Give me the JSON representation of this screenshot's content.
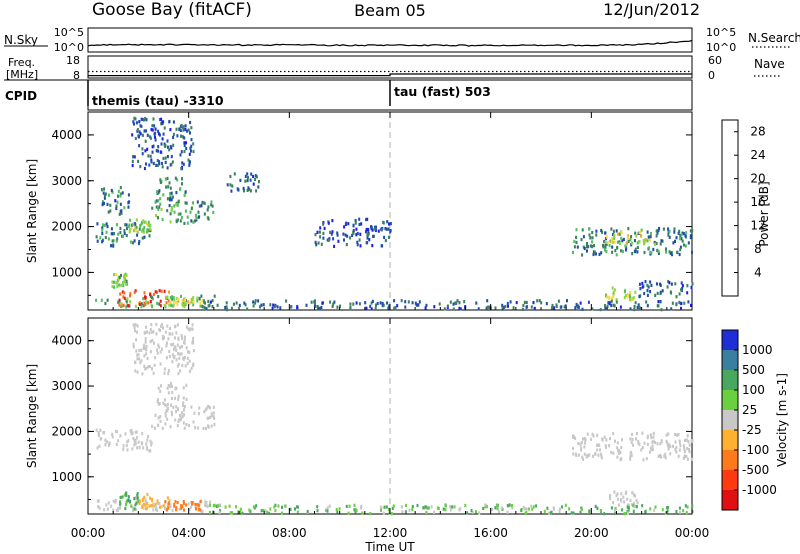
{
  "header": {
    "station": "Goose Bay (fitACF)",
    "beam": "Beam 05",
    "date": "12/Jun/2012"
  },
  "chart_data": [
    {
      "type": "line",
      "name": "noise",
      "left_label": "N.Sky",
      "right_label": "N.Search",
      "left_ticks": [
        "10^5",
        "10^0"
      ],
      "right_ticks": [
        "10^5",
        "10^0"
      ],
      "x": [
        0,
        1,
        2,
        3,
        4,
        5,
        6,
        7,
        8,
        9,
        10,
        11,
        12,
        13,
        14,
        15,
        16,
        17,
        18,
        19,
        20,
        21,
        22,
        23,
        24
      ],
      "values": [
        1.4,
        1.5,
        1.5,
        1.55,
        1.5,
        1.5,
        1.45,
        1.45,
        1.5,
        1.45,
        1.4,
        1.4,
        1.45,
        1.4,
        1.4,
        1.35,
        1.4,
        1.35,
        1.4,
        1.4,
        1.4,
        1.45,
        1.6,
        1.9,
        2.4
      ],
      "ylim": [
        0,
        5
      ]
    },
    {
      "type": "line",
      "name": "frequency-nave",
      "left_label": "Freq.",
      "left_unit": "[MHz]",
      "right_label": "Nave",
      "left_ticks": [
        "18",
        "8"
      ],
      "right_ticks": [
        "60",
        "0"
      ],
      "x": [
        0,
        12,
        12,
        24
      ],
      "values": [
        9.1,
        9.1,
        9.8,
        9.8
      ],
      "ylim": [
        8,
        18
      ]
    },
    {
      "type": "table",
      "name": "cpid",
      "label": "CPID",
      "segments": [
        {
          "start": 0,
          "text": "themis (tau) -3310"
        },
        {
          "start": 12,
          "text": "tau (fast) 503"
        }
      ]
    },
    {
      "type": "heatmap",
      "name": "power",
      "ylabel": "Slant Range [km]",
      "yticks": [
        "1000",
        "2000",
        "3000",
        "4000"
      ],
      "ylim": [
        180,
        4500
      ],
      "xlim": [
        0,
        24
      ],
      "colorbar": {
        "label": "Power [dB]",
        "ticks": [
          "4",
          "8",
          "12",
          "16",
          "20",
          "24",
          "28"
        ],
        "range": [
          0,
          30
        ]
      },
      "clusters": [
        {
          "t0": 0.2,
          "t1": 5.0,
          "r0": 280,
          "r1": 520,
          "v": 11
        },
        {
          "t0": 1.2,
          "t1": 3.2,
          "r0": 300,
          "r1": 650,
          "v": 26
        },
        {
          "t0": 3.0,
          "t1": 4.5,
          "r0": 300,
          "r1": 500,
          "v": 17
        },
        {
          "t0": 4.5,
          "t1": 19.0,
          "r0": 220,
          "r1": 420,
          "v": 6
        },
        {
          "t0": 0.9,
          "t1": 1.6,
          "r0": 700,
          "r1": 1000,
          "v": 13
        },
        {
          "t0": 0.3,
          "t1": 2.5,
          "r0": 1600,
          "r1": 2100,
          "v": 8
        },
        {
          "t0": 1.6,
          "t1": 2.5,
          "r0": 1900,
          "r1": 2200,
          "v": 14
        },
        {
          "t0": 0.5,
          "t1": 1.6,
          "r0": 2300,
          "r1": 2900,
          "v": 7
        },
        {
          "t0": 2.5,
          "t1": 5.0,
          "r0": 2100,
          "r1": 2600,
          "v": 10
        },
        {
          "t0": 2.7,
          "t1": 3.9,
          "r0": 2600,
          "r1": 3100,
          "v": 9
        },
        {
          "t0": 5.5,
          "t1": 6.8,
          "r0": 2800,
          "r1": 3200,
          "v": 6
        },
        {
          "t0": 1.7,
          "t1": 4.2,
          "r0": 3300,
          "r1": 4400,
          "v": 6
        },
        {
          "t0": 9.0,
          "t1": 12.0,
          "r0": 1600,
          "r1": 2200,
          "v": 5
        },
        {
          "t0": 19.2,
          "t1": 24.0,
          "r0": 1400,
          "r1": 2000,
          "v": 8
        },
        {
          "t0": 20.5,
          "t1": 22.5,
          "r0": 1650,
          "r1": 1950,
          "v": 17
        },
        {
          "t0": 20.5,
          "t1": 21.8,
          "r0": 400,
          "r1": 700,
          "v": 16
        },
        {
          "t0": 21.8,
          "t1": 24.0,
          "r0": 500,
          "r1": 850,
          "v": 6
        },
        {
          "t0": 19.0,
          "t1": 24.0,
          "r0": 220,
          "r1": 400,
          "v": 6
        }
      ]
    },
    {
      "type": "heatmap",
      "name": "velocity",
      "ylabel": "Slant Range [km]",
      "yticks": [
        "1000",
        "2000",
        "3000",
        "4000"
      ],
      "ylim": [
        180,
        4500
      ],
      "xlim": [
        0,
        24
      ],
      "xticks": [
        "00:00",
        "04:00",
        "08:00",
        "12:00",
        "16:00",
        "20:00",
        "00:00"
      ],
      "xlabel": "Time UT",
      "colorbar": {
        "label": "Velocity [m s-1]",
        "ticks": [
          "1000",
          "500",
          "100",
          "25",
          "-25",
          "-100",
          "-500",
          "-1000"
        ]
      },
      "clusters": [
        {
          "t0": 0.2,
          "t1": 5.0,
          "r0": 280,
          "r1": 520,
          "v": 0
        },
        {
          "t0": 1.2,
          "t1": 2.0,
          "r0": 300,
          "r1": 700,
          "v": 60
        },
        {
          "t0": 2.0,
          "t1": 3.2,
          "r0": 300,
          "r1": 650,
          "v": -60
        },
        {
          "t0": 3.0,
          "t1": 4.5,
          "r0": 300,
          "r1": 500,
          "v": -200
        },
        {
          "t0": 4.5,
          "t1": 19.0,
          "r0": 220,
          "r1": 420,
          "v": 40
        },
        {
          "t0": 0.3,
          "t1": 2.5,
          "r0": 1600,
          "r1": 2100,
          "v": 0
        },
        {
          "t0": 2.5,
          "t1": 5.0,
          "r0": 2100,
          "r1": 2600,
          "v": 0
        },
        {
          "t0": 2.7,
          "t1": 3.9,
          "r0": 2600,
          "r1": 3100,
          "v": 0
        },
        {
          "t0": 1.7,
          "t1": 4.2,
          "r0": 3300,
          "r1": 4400,
          "v": 0
        },
        {
          "t0": 19.2,
          "t1": 24.0,
          "r0": 1400,
          "r1": 2000,
          "v": 0
        },
        {
          "t0": 20.5,
          "t1": 21.8,
          "r0": 400,
          "r1": 700,
          "v": 0
        },
        {
          "t0": 19.0,
          "t1": 24.0,
          "r0": 220,
          "r1": 400,
          "v": 40
        }
      ]
    }
  ],
  "colors": {
    "power_scale": [
      "#1f1fe6",
      "#1f4fa8",
      "#3b8060",
      "#4fbf60",
      "#8fd640",
      "#ffd83a",
      "#ffa030",
      "#ff6a20",
      "#e81818"
    ],
    "velocity_scale": [
      "#1f2fd6",
      "#3a7ea0",
      "#48a860",
      "#6ad040",
      "#c8c8c8",
      "#ffb030",
      "#ff7a1a",
      "#ff3a10",
      "#e01010"
    ],
    "axis": "#000000",
    "dashed_marker": "#b0b0b0"
  }
}
